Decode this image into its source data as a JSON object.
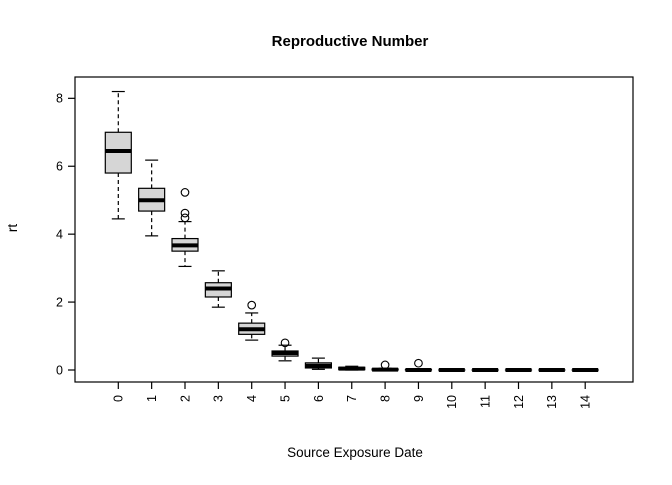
{
  "chart_data": {
    "type": "boxplot",
    "title": "Reproductive Number",
    "xlabel": "Source Exposure Date",
    "ylabel": "rt",
    "categories": [
      "0",
      "1",
      "2",
      "3",
      "4",
      "5",
      "6",
      "7",
      "8",
      "9",
      "10",
      "11",
      "12",
      "13",
      "14"
    ],
    "y_ticks": [
      0,
      2,
      4,
      6,
      8
    ],
    "ylim": [
      -0.35,
      8.6
    ],
    "grid": false,
    "legend": "none",
    "boxes": [
      {
        "category": "0",
        "low": 4.45,
        "q1": 5.8,
        "median": 6.45,
        "q3": 7.0,
        "high": 8.2,
        "outliers": []
      },
      {
        "category": "1",
        "low": 3.95,
        "q1": 4.68,
        "median": 5.0,
        "q3": 5.35,
        "high": 6.18,
        "outliers": []
      },
      {
        "category": "2",
        "low": 3.05,
        "q1": 3.5,
        "median": 3.67,
        "q3": 3.87,
        "high": 4.37,
        "outliers": [
          4.48,
          4.62,
          5.23
        ]
      },
      {
        "category": "3",
        "low": 1.85,
        "q1": 2.15,
        "median": 2.4,
        "q3": 2.57,
        "high": 2.92,
        "outliers": []
      },
      {
        "category": "4",
        "low": 0.88,
        "q1": 1.05,
        "median": 1.2,
        "q3": 1.38,
        "high": 1.68,
        "outliers": [
          1.91
        ]
      },
      {
        "category": "5",
        "low": 0.27,
        "q1": 0.41,
        "median": 0.5,
        "q3": 0.56,
        "high": 0.73,
        "outliers": [
          0.8
        ]
      },
      {
        "category": "6",
        "low": 0.02,
        "q1": 0.06,
        "median": 0.12,
        "q3": 0.21,
        "high": 0.35,
        "outliers": []
      },
      {
        "category": "7",
        "low": 0.0,
        "q1": 0.01,
        "median": 0.04,
        "q3": 0.08,
        "high": 0.11,
        "outliers": []
      },
      {
        "category": "8",
        "low": 0.0,
        "q1": 0.0,
        "median": 0.01,
        "q3": 0.03,
        "high": 0.05,
        "outliers": [
          0.15
        ]
      },
      {
        "category": "9",
        "low": 0.0,
        "q1": 0.0,
        "median": 0.0,
        "q3": 0.01,
        "high": 0.02,
        "outliers": [
          0.2
        ]
      },
      {
        "category": "10",
        "low": 0.0,
        "q1": 0.0,
        "median": 0.0,
        "q3": 0.0,
        "high": 0.0,
        "outliers": []
      },
      {
        "category": "11",
        "low": 0.0,
        "q1": 0.0,
        "median": 0.0,
        "q3": 0.0,
        "high": 0.0,
        "outliers": []
      },
      {
        "category": "12",
        "low": 0.0,
        "q1": 0.0,
        "median": 0.0,
        "q3": 0.0,
        "high": 0.0,
        "outliers": []
      },
      {
        "category": "13",
        "low": 0.0,
        "q1": 0.0,
        "median": 0.0,
        "q3": 0.0,
        "high": 0.0,
        "outliers": []
      },
      {
        "category": "14",
        "low": 0.0,
        "q1": 0.0,
        "median": 0.0,
        "q3": 0.0,
        "high": 0.0,
        "outliers": []
      }
    ],
    "style": {
      "box_fill": "#d6d6d6",
      "box_stroke": "#000000",
      "median_color": "#000000",
      "whisker_color": "#000000",
      "outlier_stroke": "#000000",
      "background": "#ffffff"
    }
  }
}
